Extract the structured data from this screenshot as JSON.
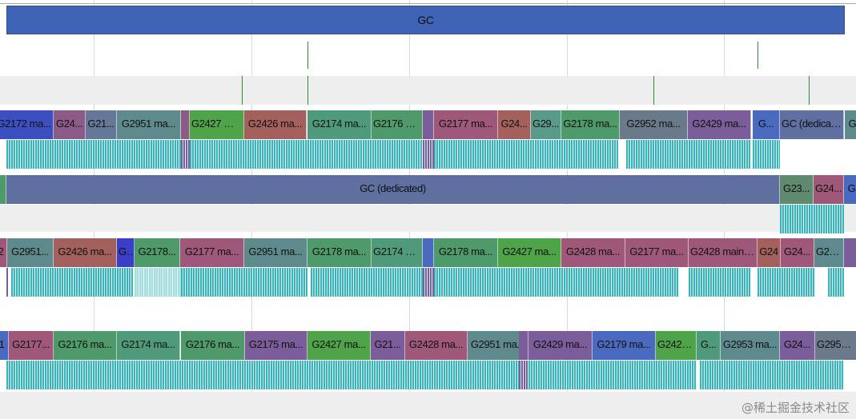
{
  "colors": {
    "gc_top": "#3f64b5",
    "gc_dedicated": "#5e6fa0",
    "sub_cyan": "#3ab4b9",
    "sub_light": "#a8dde0",
    "sub_purple": "#7a5d9a",
    "marker": "#2e8b2e",
    "grey_row": "#eeeeee"
  },
  "gc_row": {
    "label": "GC"
  },
  "proc1": [
    {
      "label": "G2172 ma...",
      "color": "#3b4fc0"
    },
    {
      "label": "G24...",
      "color": "#8c5a86"
    },
    {
      "label": "G21...",
      "color": "#66789a"
    },
    {
      "label": "G2951 ma...",
      "color": "#5f8a8d"
    },
    {
      "label": "",
      "color": "#8c5a86"
    },
    {
      "label": "G2427 ma...",
      "color": "#4fa348"
    },
    {
      "label": "G2426 ma...",
      "color": "#a3605c"
    },
    {
      "label": "G2174 ma...",
      "color": "#4f9a7a"
    },
    {
      "label": "G2176 ma...",
      "color": "#4f9a6a"
    },
    {
      "label": "",
      "color": "#7a5d9a"
    },
    {
      "label": "G2177 ma...",
      "color": "#a0587a"
    },
    {
      "label": "G24...",
      "color": "#a3605c"
    },
    {
      "label": "G29...",
      "color": "#5a9a8a"
    },
    {
      "label": "G2178 ma...",
      "color": "#4f9a6a"
    },
    {
      "label": "G2952 ma...",
      "color": "#6a7a8a"
    },
    {
      "label": "G2429 ma...",
      "color": "#7a5d9a"
    },
    {
      "label": "G...",
      "color": "#4a6ac0"
    },
    {
      "label": "GC (dedicated)",
      "color": "#5e6fa0"
    },
    {
      "label": "G",
      "color": "#5f8a8d"
    }
  ],
  "proc2": [
    {
      "label": "",
      "color": "#4f9a6a"
    },
    {
      "label": "GC (dedicated)",
      "color": "#5e6fa0"
    },
    {
      "label": "G23...",
      "color": "#5f8a6d"
    },
    {
      "label": "G24...",
      "color": "#a0587a"
    },
    {
      "label": "G",
      "color": "#4a6ac0"
    }
  ],
  "proc3": [
    {
      "label": "2",
      "color": "#a0587a"
    },
    {
      "label": "G2951...",
      "color": "#5f8a8d"
    },
    {
      "label": "G2426 ma...",
      "color": "#a3605c"
    },
    {
      "label": "G21",
      "color": "#3b3fc8"
    },
    {
      "label": "G2178...",
      "color": "#4f9a6a"
    },
    {
      "label": "G2177 ma...",
      "color": "#a0587a"
    },
    {
      "label": "G2951 ma...",
      "color": "#5f8a8d"
    },
    {
      "label": "G2178 ma...",
      "color": "#4f9a6a"
    },
    {
      "label": "G2174 ma...",
      "color": "#4f9a7a"
    },
    {
      "label": "",
      "color": "#4a6ac0"
    },
    {
      "label": "G2178 ma...",
      "color": "#4f9a6a"
    },
    {
      "label": "G2427 ma...",
      "color": "#4fa348"
    },
    {
      "label": "G2428 ma...",
      "color": "#a0587a"
    },
    {
      "label": "G2177 ma...",
      "color": "#a0587a"
    },
    {
      "label": "G2428 main.b...",
      "color": "#a0587a"
    },
    {
      "label": "G24",
      "color": "#a3605c"
    },
    {
      "label": "G24...",
      "color": "#a0587a"
    },
    {
      "label": "G29...",
      "color": "#5f8a8d"
    },
    {
      "label": "",
      "color": "#7a5d9a"
    }
  ],
  "proc4": [
    {
      "label": "1",
      "color": "#4a6ac0"
    },
    {
      "label": "G2177...",
      "color": "#a0587a"
    },
    {
      "label": "G2176 ma...",
      "color": "#4f9a6a"
    },
    {
      "label": "G2174 ma...",
      "color": "#4f9a7a"
    },
    {
      "label": "G2176 ma...",
      "color": "#4f9a6a"
    },
    {
      "label": "G2175 ma...",
      "color": "#7a5d9a"
    },
    {
      "label": "G2427 ma...",
      "color": "#4fa348"
    },
    {
      "label": "G21...",
      "color": "#7a5d9a"
    },
    {
      "label": "G2428 ma...",
      "color": "#a0587a"
    },
    {
      "label": "G2951 ma...",
      "color": "#5f8a8d"
    },
    {
      "label": "",
      "color": "#7a5d9a"
    },
    {
      "label": "G2429 ma...",
      "color": "#7a5d9a"
    },
    {
      "label": "G2179 ma...",
      "color": "#4a6ac0"
    },
    {
      "label": "G2427...",
      "color": "#4fa348"
    },
    {
      "label": "G...",
      "color": "#4f9a7a"
    },
    {
      "label": "G2953 ma...",
      "color": "#5f8a8d"
    },
    {
      "label": "G24...",
      "color": "#7a5d9a"
    },
    {
      "label": "G2952 ma",
      "color": "#6a7a8a"
    }
  ],
  "watermark": "@稀土掘金技术社区"
}
